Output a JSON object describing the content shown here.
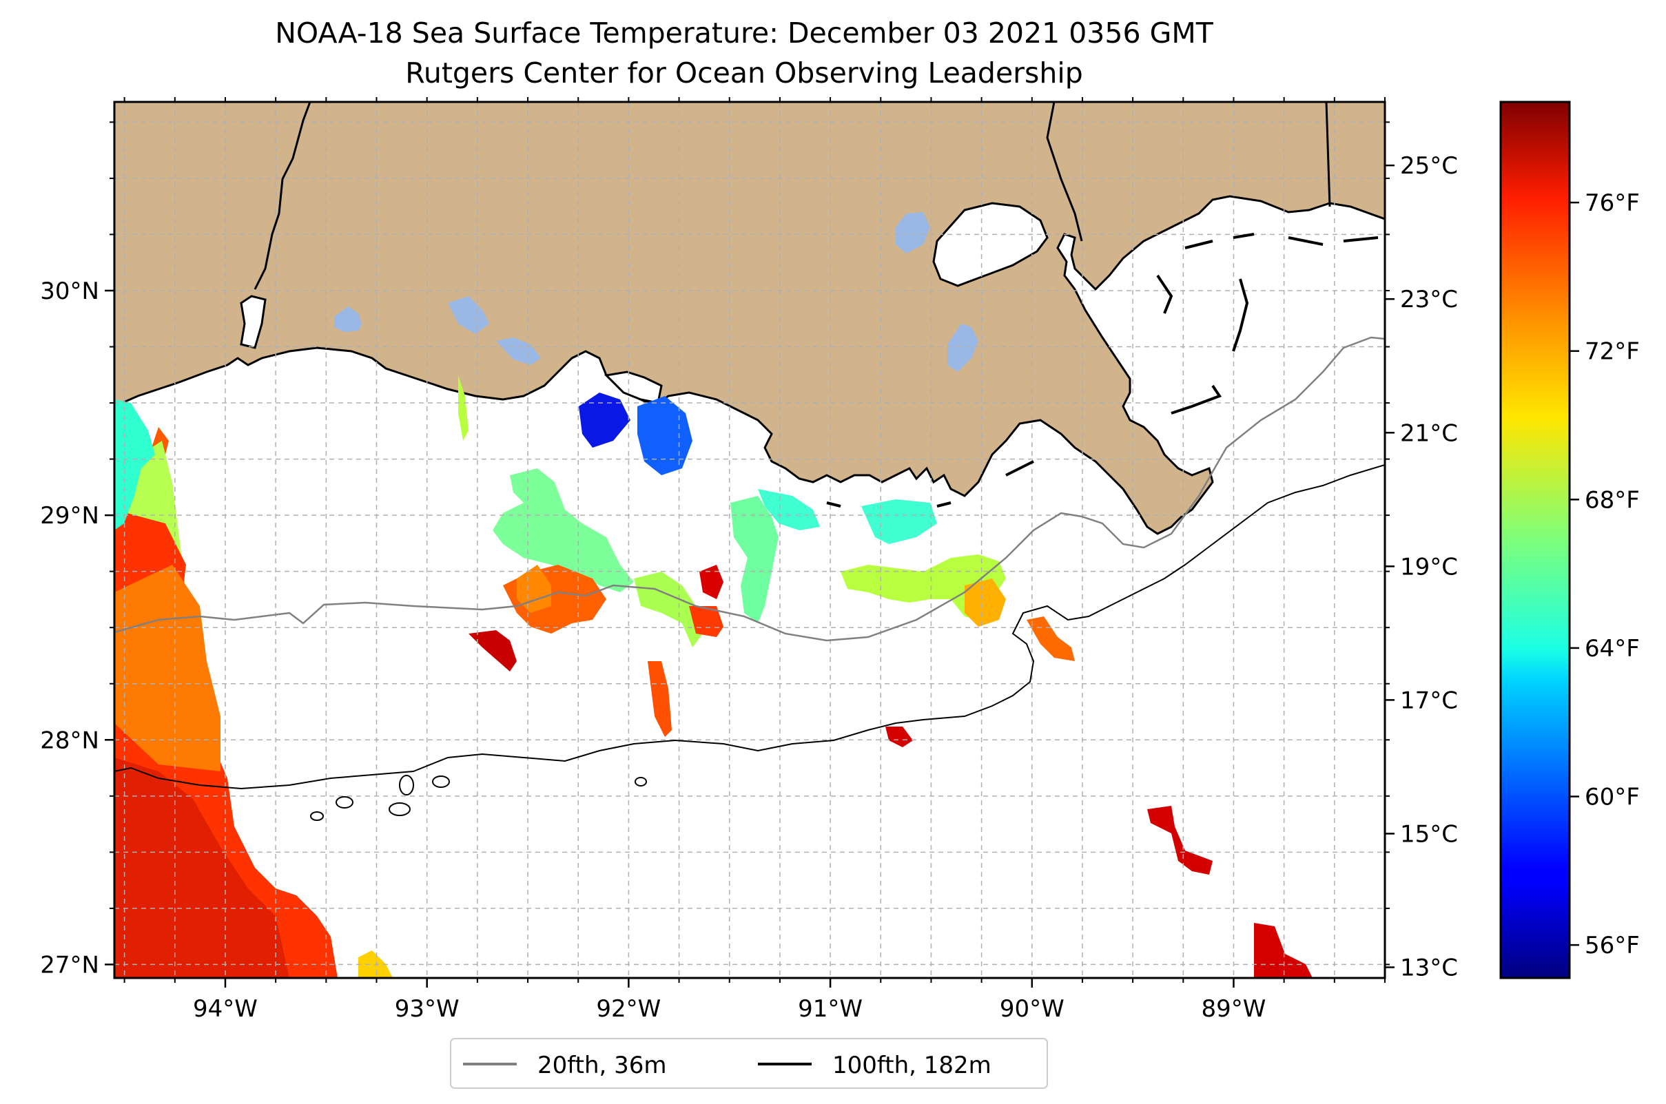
{
  "title": {
    "line1": "NOAA-18 Sea Surface Temperature: December 03 2021 0356 GMT",
    "line2": "Rutgers Center for Ocean Observing Leadership"
  },
  "map": {
    "lon_range": [
      -94.55,
      -88.25
    ],
    "lat_range": [
      26.94,
      30.84
    ],
    "lon_ticks": [
      {
        "value": -94,
        "label": "94°W"
      },
      {
        "value": -93,
        "label": "93°W"
      },
      {
        "value": -92,
        "label": "92°W"
      },
      {
        "value": -91,
        "label": "91°W"
      },
      {
        "value": -90,
        "label": "90°W"
      },
      {
        "value": -89,
        "label": "89°W"
      }
    ],
    "lat_ticks": [
      {
        "value": 27,
        "label": "27°N"
      },
      {
        "value": 28,
        "label": "28°N"
      },
      {
        "value": 29,
        "label": "29°N"
      },
      {
        "value": 30,
        "label": "30°N"
      }
    ],
    "grid": true,
    "colors": {
      "land": "#d2b48c",
      "lakes": "#9ab8e6",
      "isobath_20": "#808080",
      "isobath_100": "#000000"
    }
  },
  "colorbar": {
    "celsius_ticks": [
      {
        "value": 25,
        "label": "25°C"
      },
      {
        "value": 23,
        "label": "23°C"
      },
      {
        "value": 21,
        "label": "21°C"
      },
      {
        "value": 19,
        "label": "19°C"
      },
      {
        "value": 17,
        "label": "17°C"
      },
      {
        "value": 15,
        "label": "15°C"
      },
      {
        "value": 13,
        "label": "13°C"
      }
    ],
    "fahrenheit_ticks": [
      {
        "value": 76,
        "label": "76°F"
      },
      {
        "value": 72,
        "label": "72°F"
      },
      {
        "value": 68,
        "label": "68°F"
      },
      {
        "value": 64,
        "label": "64°F"
      },
      {
        "value": 60,
        "label": "60°F"
      },
      {
        "value": 56,
        "label": "56°F"
      }
    ],
    "colormap": "jet"
  },
  "legend": {
    "placement": "bottom-center",
    "items": [
      {
        "label": "20fth, 36m",
        "color": "#808080"
      },
      {
        "label": "100fth, 182m",
        "color": "#000000"
      }
    ]
  }
}
